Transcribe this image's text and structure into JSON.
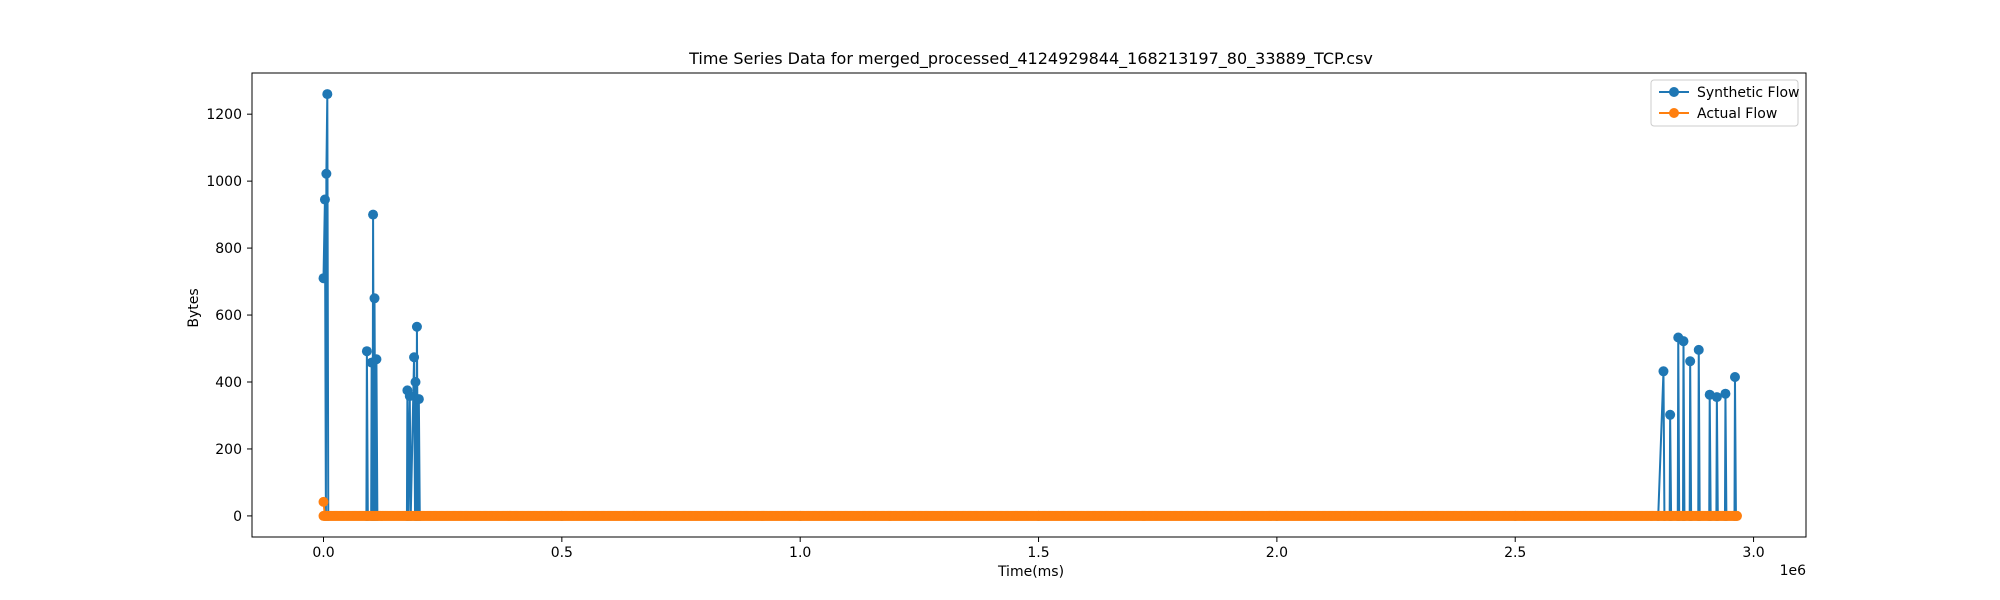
{
  "chart_data": {
    "type": "line",
    "title": "Time Series Data for merged_processed_4124929844_168213197_80_33889_TCP.csv",
    "xlabel": "Time(ms)",
    "ylabel": "Bytes",
    "x_offset_label": "1e6",
    "xlim": [
      -150000,
      3110000
    ],
    "ylim": [
      -63,
      1323
    ],
    "x_ticks": [
      0,
      500000,
      1000000,
      1500000,
      2000000,
      2500000,
      3000000
    ],
    "x_tick_labels": [
      "0.0",
      "0.5",
      "1.0",
      "1.5",
      "2.0",
      "2.5",
      "3.0"
    ],
    "y_ticks": [
      0,
      200,
      400,
      600,
      800,
      1000,
      1200
    ],
    "y_tick_labels": [
      "0",
      "200",
      "400",
      "600",
      "800",
      "1000",
      "1200"
    ],
    "grid": false,
    "legend_position": "top-right",
    "series": [
      {
        "name": "Synthetic Flow",
        "color": "#1f77b4",
        "marker": "circle",
        "points": [
          [
            0,
            710
          ],
          [
            3000,
            945
          ],
          [
            5000,
            0
          ],
          [
            6000,
            1022
          ],
          [
            8000,
            1260
          ],
          [
            10000,
            0
          ],
          [
            90000,
            0
          ],
          [
            91000,
            492
          ],
          [
            93000,
            0
          ],
          [
            100000,
            0
          ],
          [
            101000,
            458
          ],
          [
            103000,
            0
          ],
          [
            104000,
            900
          ],
          [
            106000,
            0
          ],
          [
            107000,
            650
          ],
          [
            109000,
            0
          ],
          [
            111000,
            468
          ],
          [
            113000,
            0
          ],
          [
            175000,
            0
          ],
          [
            176000,
            375
          ],
          [
            178000,
            0
          ],
          [
            181000,
            358
          ],
          [
            183000,
            0
          ],
          [
            190000,
            474
          ],
          [
            192000,
            0
          ],
          [
            193000,
            400
          ],
          [
            195000,
            0
          ],
          [
            196000,
            565
          ],
          [
            198000,
            0
          ],
          [
            200000,
            349
          ],
          [
            202000,
            0
          ],
          [
            500000,
            0
          ],
          [
            1000000,
            0
          ],
          [
            1500000,
            0
          ],
          [
            2000000,
            0
          ],
          [
            2500000,
            0
          ],
          [
            2800000,
            0
          ],
          [
            2811000,
            432
          ],
          [
            2813000,
            0
          ],
          [
            2824000,
            0
          ],
          [
            2825000,
            302
          ],
          [
            2827000,
            0
          ],
          [
            2841000,
            0
          ],
          [
            2842000,
            533
          ],
          [
            2844000,
            0
          ],
          [
            2852000,
            0
          ],
          [
            2853000,
            522
          ],
          [
            2855000,
            0
          ],
          [
            2866000,
            0
          ],
          [
            2867000,
            462
          ],
          [
            2869000,
            0
          ],
          [
            2884000,
            0
          ],
          [
            2885000,
            496
          ],
          [
            2887000,
            0
          ],
          [
            2907000,
            0
          ],
          [
            2908000,
            362
          ],
          [
            2910000,
            0
          ],
          [
            2922000,
            0
          ],
          [
            2923000,
            355
          ],
          [
            2925000,
            0
          ],
          [
            2940000,
            0
          ],
          [
            2941000,
            365
          ],
          [
            2943000,
            0
          ],
          [
            2960000,
            0
          ],
          [
            2961000,
            415
          ],
          [
            2963000,
            0
          ]
        ]
      },
      {
        "name": "Actual Flow",
        "color": "#ff7f0e",
        "marker": "circle",
        "points": [
          [
            0,
            42
          ],
          [
            3000,
            0
          ],
          [
            2965000,
            0
          ]
        ]
      }
    ]
  }
}
